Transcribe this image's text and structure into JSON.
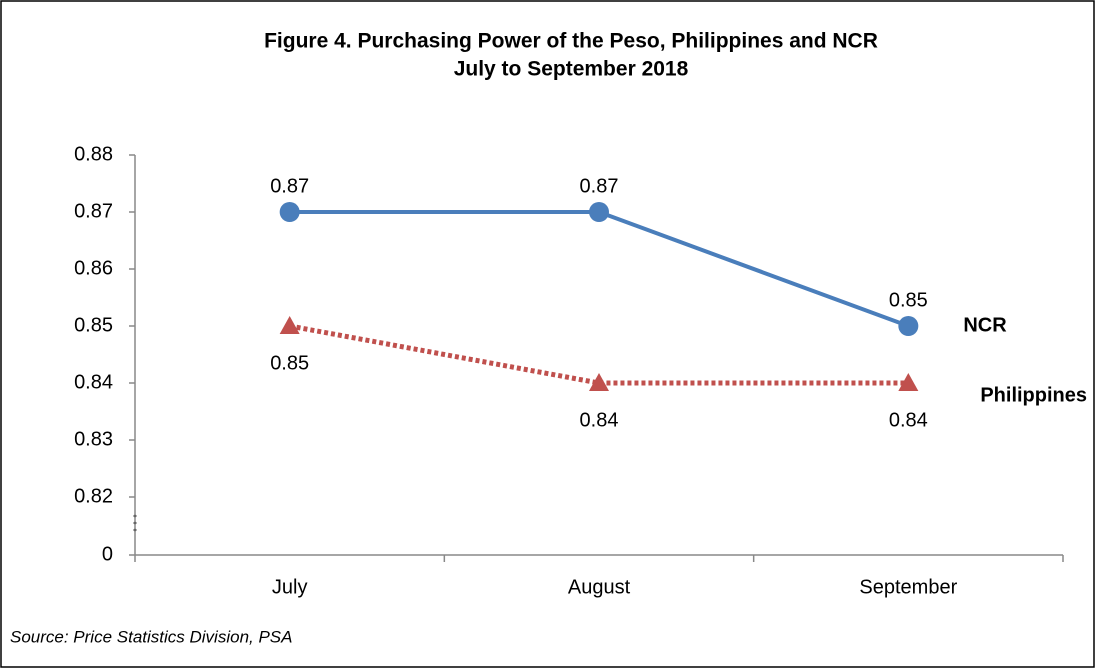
{
  "chart_data": {
    "type": "line",
    "title": "Figure 4. Purchasing Power of the Peso, Philippines and NCR",
    "subtitle": "July to September 2018",
    "source": "Source: Price Statistics Division, PSA",
    "categories": [
      "July",
      "August",
      "September"
    ],
    "series": [
      {
        "name": "NCR",
        "color": "#4a7ebb",
        "marker": "circle",
        "line_style": "solid",
        "values": [
          0.87,
          0.87,
          0.85
        ]
      },
      {
        "name": "Philippines",
        "color": "#c0504d",
        "marker": "triangle",
        "line_style": "dotted",
        "values": [
          0.85,
          0.84,
          0.84
        ]
      }
    ],
    "ylim": [
      0,
      0.88
    ],
    "y_break": [
      0,
      0.82
    ],
    "yticks": [
      0,
      0.82,
      0.83,
      0.84,
      0.85,
      0.86,
      0.87,
      0.88
    ]
  }
}
